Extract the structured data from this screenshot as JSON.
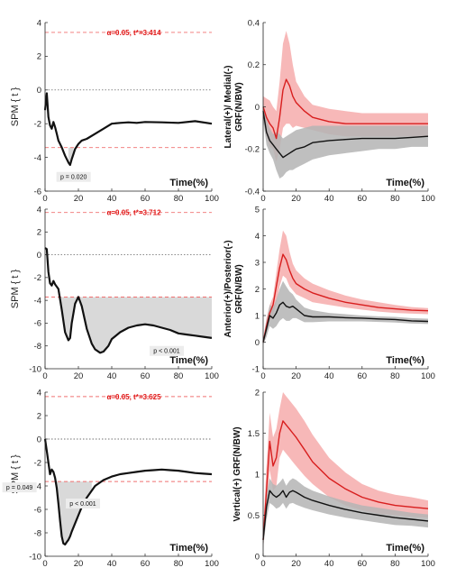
{
  "colors": {
    "red": "#d81e1e",
    "red_band": "#f4a0a0",
    "black": "#111111",
    "grey_band": "#b4b4b4",
    "threshold": "#f07070",
    "spm_fill": "#d9d9d9"
  },
  "chart_data": [
    {
      "type": "line",
      "kind": "spm",
      "xlabel": "Time(%)",
      "ylabel": "SPM { t }",
      "xlim": [
        0,
        100
      ],
      "ylim": [
        -6,
        4
      ],
      "xticks": [
        "0",
        "20",
        "40",
        "60",
        "80",
        "100"
      ],
      "yticks": [
        "4",
        "2",
        "0",
        "-2",
        "-4",
        "-6"
      ],
      "threshold": 3.414,
      "threshold_label": "α=0.05, t*=3.414",
      "x": [
        0,
        1,
        2,
        3,
        4,
        5,
        6,
        7,
        8,
        10,
        12,
        14,
        15,
        16,
        17,
        18,
        20,
        22,
        25,
        30,
        35,
        40,
        45,
        50,
        55,
        60,
        70,
        80,
        90,
        100
      ],
      "values": [
        -1.2,
        -0.2,
        -1.6,
        -2.1,
        -2.3,
        -1.9,
        -2.2,
        -2.6,
        -3.0,
        -3.4,
        -3.9,
        -4.3,
        -4.45,
        -4.1,
        -3.8,
        -3.5,
        -3.2,
        -3.0,
        -2.9,
        -2.6,
        -2.3,
        -2.0,
        -1.95,
        -1.92,
        -1.95,
        -1.9,
        -1.92,
        -1.95,
        -1.85,
        -2.0
      ],
      "clusters": [
        {
          "x": [
            14,
            17
          ],
          "p": "p = 0.020"
        }
      ]
    },
    {
      "type": "line",
      "kind": "band",
      "xlabel": "Time(%)",
      "ylabel": [
        "Lateral(+)/ Medial(-)",
        "GRF(N/BW)"
      ],
      "xlim": [
        0,
        100
      ],
      "ylim": [
        -0.4,
        0.4
      ],
      "xticks": [
        "0",
        "20",
        "40",
        "60",
        "80",
        "100"
      ],
      "yticks": [
        "0.4",
        "0.2",
        "0",
        "-0.2",
        "-0.4"
      ],
      "x": [
        0,
        2,
        4,
        6,
        8,
        10,
        12,
        14,
        16,
        18,
        20,
        25,
        30,
        40,
        50,
        60,
        70,
        80,
        90,
        100
      ],
      "series": [
        {
          "color": "red",
          "values": [
            0.0,
            -0.05,
            -0.08,
            -0.1,
            -0.15,
            -0.05,
            0.08,
            0.13,
            0.1,
            0.05,
            0.02,
            -0.02,
            -0.05,
            -0.07,
            -0.08,
            -0.08,
            -0.08,
            -0.08,
            -0.08,
            -0.08
          ],
          "upper": [
            0.05,
            0.04,
            0.03,
            0.0,
            -0.02,
            0.12,
            0.3,
            0.36,
            0.3,
            0.2,
            0.12,
            0.05,
            0.01,
            -0.01,
            -0.02,
            -0.03,
            -0.03,
            -0.03,
            -0.03,
            -0.03
          ],
          "lower": [
            -0.05,
            -0.14,
            -0.19,
            -0.2,
            -0.26,
            -0.2,
            -0.1,
            -0.08,
            -0.08,
            -0.1,
            -0.09,
            -0.1,
            -0.11,
            -0.13,
            -0.14,
            -0.14,
            -0.14,
            -0.14,
            -0.14,
            -0.14
          ]
        },
        {
          "color": "black",
          "values": [
            -0.02,
            -0.12,
            -0.16,
            -0.18,
            -0.2,
            -0.22,
            -0.24,
            -0.23,
            -0.22,
            -0.21,
            -0.2,
            -0.19,
            -0.17,
            -0.16,
            -0.155,
            -0.15,
            -0.15,
            -0.15,
            -0.145,
            -0.14
          ],
          "upper": [
            0.02,
            -0.06,
            -0.1,
            -0.13,
            -0.12,
            -0.13,
            -0.15,
            -0.14,
            -0.13,
            -0.12,
            -0.11,
            -0.1,
            -0.09,
            -0.09,
            -0.09,
            -0.09,
            -0.09,
            -0.09,
            -0.09,
            -0.09
          ],
          "lower": [
            -0.06,
            -0.18,
            -0.22,
            -0.25,
            -0.3,
            -0.34,
            -0.33,
            -0.31,
            -0.3,
            -0.3,
            -0.29,
            -0.27,
            -0.25,
            -0.23,
            -0.22,
            -0.21,
            -0.2,
            -0.2,
            -0.19,
            -0.19
          ]
        }
      ]
    },
    {
      "type": "line",
      "kind": "spm",
      "xlabel": "Time(%)",
      "ylabel": "SPM { t }",
      "xlim": [
        0,
        100
      ],
      "ylim": [
        -10,
        4
      ],
      "xticks": [
        "0",
        "20",
        "40",
        "60",
        "80",
        "100"
      ],
      "yticks": [
        "4",
        "2",
        "0",
        "-2",
        "-4",
        "-6",
        "-8",
        "-10"
      ],
      "threshold": 3.712,
      "threshold_label": "α=0.05, t*=3.712",
      "x": [
        0,
        1,
        2,
        3,
        4,
        5,
        6,
        7,
        8,
        10,
        12,
        14,
        15,
        16,
        18,
        20,
        22,
        25,
        28,
        30,
        33,
        35,
        38,
        40,
        45,
        50,
        55,
        60,
        65,
        70,
        75,
        80,
        85,
        90,
        95,
        100
      ],
      "values": [
        0.6,
        0.5,
        -1.5,
        -2.5,
        -2.7,
        -2.3,
        -2.6,
        -2.8,
        -3.0,
        -4.8,
        -6.8,
        -7.5,
        -7.3,
        -6.0,
        -4.3,
        -3.7,
        -4.5,
        -6.5,
        -7.8,
        -8.3,
        -8.6,
        -8.5,
        -8.0,
        -7.4,
        -6.8,
        -6.4,
        -6.2,
        -6.1,
        -6.2,
        -6.4,
        -6.6,
        -6.9,
        -7.0,
        -7.1,
        -7.2,
        -7.3
      ],
      "clusters": [
        {
          "x": [
            3,
            100
          ],
          "p": "p < 0.001"
        }
      ]
    },
    {
      "type": "line",
      "kind": "band",
      "xlabel": "Time(%)",
      "ylabel": [
        "Anterior(+)/Posterior(-)",
        "GRF(N/BW)"
      ],
      "xlim": [
        0,
        100
      ],
      "ylim": [
        -1,
        5
      ],
      "xticks": [
        "0",
        "20",
        "40",
        "60",
        "80",
        "100"
      ],
      "yticks": [
        "5",
        "4",
        "3",
        "2",
        "1",
        "0",
        "-1"
      ],
      "x": [
        0,
        2,
        4,
        6,
        8,
        10,
        12,
        14,
        16,
        18,
        20,
        25,
        30,
        40,
        50,
        60,
        70,
        80,
        90,
        100
      ],
      "series": [
        {
          "color": "red",
          "values": [
            0.0,
            0.6,
            1.1,
            1.4,
            2.1,
            2.8,
            3.3,
            3.1,
            2.7,
            2.4,
            2.2,
            2.0,
            1.85,
            1.65,
            1.5,
            1.4,
            1.3,
            1.25,
            1.2,
            1.18
          ],
          "upper": [
            0.1,
            0.9,
            1.4,
            1.7,
            2.6,
            3.5,
            4.2,
            4.0,
            3.4,
            2.95,
            2.7,
            2.4,
            2.2,
            1.95,
            1.75,
            1.6,
            1.5,
            1.4,
            1.32,
            1.28
          ],
          "lower": [
            -0.1,
            0.3,
            0.8,
            1.0,
            1.5,
            2.1,
            2.5,
            2.4,
            2.1,
            1.95,
            1.8,
            1.65,
            1.5,
            1.4,
            1.3,
            1.22,
            1.15,
            1.1,
            1.07,
            1.05
          ]
        },
        {
          "color": "black",
          "values": [
            0.0,
            0.5,
            1.0,
            0.9,
            1.1,
            1.4,
            1.5,
            1.35,
            1.3,
            1.35,
            1.25,
            1.0,
            0.95,
            0.95,
            0.92,
            0.9,
            0.87,
            0.85,
            0.8,
            0.78
          ],
          "upper": [
            0.1,
            0.8,
            1.4,
            1.3,
            1.6,
            2.0,
            2.3,
            2.1,
            1.9,
            1.8,
            1.6,
            1.3,
            1.2,
            1.1,
            1.05,
            1.0,
            0.97,
            0.95,
            0.9,
            0.88
          ],
          "lower": [
            -0.1,
            0.2,
            0.6,
            0.5,
            0.6,
            0.8,
            0.9,
            0.8,
            0.8,
            0.9,
            0.9,
            0.75,
            0.75,
            0.78,
            0.78,
            0.78,
            0.76,
            0.74,
            0.7,
            0.68
          ]
        }
      ]
    },
    {
      "type": "line",
      "kind": "spm",
      "xlabel": "Time(%)",
      "ylabel": "SPM { t }",
      "xlim": [
        0,
        100
      ],
      "ylim": [
        -10,
        4
      ],
      "xticks": [
        "0",
        "20",
        "40",
        "60",
        "80",
        "100"
      ],
      "yticks": [
        "4",
        "2",
        "0",
        "-2",
        "-4",
        "-6",
        "-8",
        "-10"
      ],
      "threshold": 3.625,
      "threshold_label": "α=0.05, t*=3.625",
      "x": [
        0,
        1,
        2,
        3,
        4,
        5,
        6,
        7,
        8,
        9,
        10,
        11,
        12,
        13,
        14,
        15,
        16,
        18,
        20,
        22,
        25,
        30,
        35,
        40,
        45,
        50,
        55,
        60,
        65,
        70,
        75,
        80,
        85,
        90,
        95,
        100
      ],
      "values": [
        0.0,
        -1.0,
        -2.0,
        -3.0,
        -2.6,
        -2.8,
        -3.3,
        -4.2,
        -5.5,
        -7.0,
        -8.3,
        -8.9,
        -9.0,
        -8.8,
        -8.6,
        -8.3,
        -7.9,
        -7.2,
        -6.5,
        -5.8,
        -5.0,
        -4.0,
        -3.5,
        -3.2,
        -3.0,
        -2.9,
        -2.8,
        -2.7,
        -2.65,
        -2.6,
        -2.65,
        -2.7,
        -2.8,
        -2.9,
        -2.95,
        -3.0
      ],
      "clusters": [
        {
          "x": [
            1.5,
            3.5
          ],
          "p": "p = 0.049"
        },
        {
          "x": [
            6,
            28
          ],
          "p": "p < 0.001"
        }
      ]
    },
    {
      "type": "line",
      "kind": "band",
      "xlabel": "Time(%)",
      "ylabel": [
        "Vertical(+) GRF(N/BW)"
      ],
      "xlim": [
        0,
        100
      ],
      "ylim": [
        0,
        2
      ],
      "xticks": [
        "0",
        "20",
        "40",
        "60",
        "80",
        "100"
      ],
      "yticks": [
        "2",
        "1.5",
        "1",
        "0.5",
        "0"
      ],
      "x": [
        0,
        2,
        4,
        6,
        8,
        10,
        12,
        14,
        16,
        18,
        20,
        25,
        30,
        40,
        50,
        60,
        70,
        80,
        90,
        100
      ],
      "series": [
        {
          "color": "red",
          "values": [
            0.2,
            0.8,
            1.4,
            1.1,
            1.2,
            1.5,
            1.65,
            1.6,
            1.55,
            1.5,
            1.45,
            1.3,
            1.15,
            0.95,
            0.82,
            0.72,
            0.66,
            0.62,
            0.6,
            0.58
          ],
          "upper": [
            0.3,
            1.1,
            1.75,
            1.45,
            1.55,
            1.8,
            2.0,
            1.95,
            1.9,
            1.85,
            1.8,
            1.65,
            1.48,
            1.2,
            1.02,
            0.88,
            0.8,
            0.75,
            0.72,
            0.68
          ],
          "lower": [
            0.1,
            0.5,
            1.05,
            0.8,
            0.85,
            1.2,
            1.3,
            1.25,
            1.2,
            1.15,
            1.1,
            0.98,
            0.88,
            0.72,
            0.62,
            0.56,
            0.52,
            0.5,
            0.48,
            0.47
          ]
        },
        {
          "color": "black",
          "values": [
            0.2,
            0.6,
            0.8,
            0.75,
            0.72,
            0.75,
            0.8,
            0.72,
            0.78,
            0.8,
            0.78,
            0.72,
            0.68,
            0.62,
            0.57,
            0.53,
            0.5,
            0.47,
            0.45,
            0.43
          ],
          "upper": [
            0.3,
            0.75,
            0.95,
            0.88,
            0.86,
            0.9,
            0.95,
            0.86,
            0.92,
            0.95,
            0.93,
            0.85,
            0.8,
            0.73,
            0.67,
            0.62,
            0.59,
            0.56,
            0.53,
            0.51
          ],
          "lower": [
            0.1,
            0.45,
            0.65,
            0.62,
            0.58,
            0.6,
            0.65,
            0.58,
            0.64,
            0.65,
            0.63,
            0.59,
            0.56,
            0.51,
            0.47,
            0.44,
            0.41,
            0.38,
            0.37,
            0.35
          ]
        }
      ]
    }
  ]
}
